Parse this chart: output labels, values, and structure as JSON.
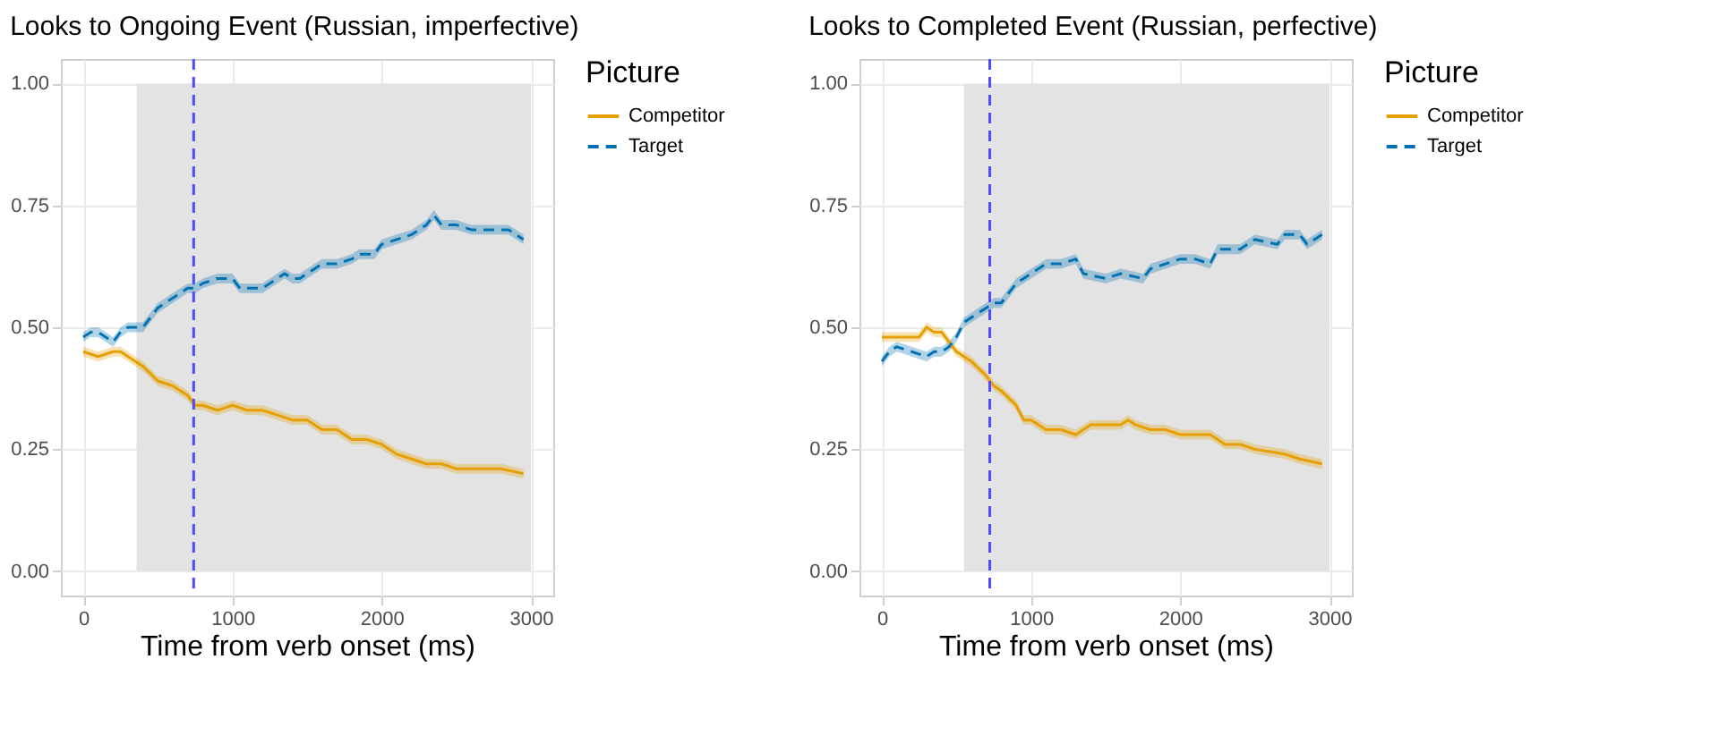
{
  "chart_data": [
    {
      "type": "line",
      "title": "Looks to Ongoing Event (Russian, imperfective)",
      "xlabel": "Time from verb onset (ms)",
      "legend_title": "Picture",
      "legend": "right",
      "grid": true,
      "xlim": [
        -150,
        3150
      ],
      "xticks": [
        0,
        1000,
        2000,
        3000
      ],
      "ylim": [
        -0.05,
        1.05
      ],
      "yticks": [
        {
          "value": 0,
          "label": "0.00"
        },
        {
          "value": 0.25,
          "label": "0.25"
        },
        {
          "value": 0.5,
          "label": "0.50"
        },
        {
          "value": 0.75,
          "label": "0.75"
        },
        {
          "value": 1,
          "label": "1.00"
        }
      ],
      "bands": [
        {
          "axis": "x",
          "from": 357,
          "to": 3000,
          "color": "#e3e3e3"
        }
      ],
      "ref_lines": [
        {
          "axis": "x",
          "value": 740,
          "color": "#4d4dff",
          "line_style": "dashed"
        }
      ],
      "series": [
        {
          "name": "Competitor",
          "color": "#e69f00",
          "line_style": "solid",
          "x": [
            0,
            100,
            200,
            250,
            300,
            350,
            400,
            500,
            600,
            700,
            750,
            800,
            900,
            1000,
            1100,
            1200,
            1300,
            1400,
            1450,
            1500,
            1600,
            1700,
            1800,
            1900,
            2000,
            2100,
            2200,
            2300,
            2400,
            2500,
            2600,
            2700,
            2800,
            2950
          ],
          "values": [
            0.45,
            0.44,
            0.45,
            0.45,
            0.44,
            0.43,
            0.42,
            0.39,
            0.38,
            0.36,
            0.34,
            0.34,
            0.33,
            0.34,
            0.33,
            0.33,
            0.32,
            0.31,
            0.31,
            0.31,
            0.29,
            0.29,
            0.27,
            0.27,
            0.26,
            0.24,
            0.23,
            0.22,
            0.22,
            0.21,
            0.21,
            0.21,
            0.21,
            0.2
          ],
          "lower": [
            0.44,
            0.43,
            0.44,
            0.44,
            0.43,
            0.42,
            0.41,
            0.38,
            0.37,
            0.35,
            0.33,
            0.33,
            0.32,
            0.33,
            0.32,
            0.32,
            0.31,
            0.3,
            0.3,
            0.3,
            0.28,
            0.28,
            0.26,
            0.26,
            0.25,
            0.23,
            0.22,
            0.21,
            0.21,
            0.2,
            0.2,
            0.2,
            0.2,
            0.19
          ],
          "upper": [
            0.46,
            0.45,
            0.46,
            0.46,
            0.45,
            0.44,
            0.43,
            0.4,
            0.39,
            0.37,
            0.35,
            0.35,
            0.34,
            0.35,
            0.34,
            0.34,
            0.33,
            0.32,
            0.32,
            0.32,
            0.3,
            0.3,
            0.28,
            0.28,
            0.27,
            0.25,
            0.24,
            0.23,
            0.23,
            0.22,
            0.22,
            0.22,
            0.22,
            0.21
          ]
        },
        {
          "name": "Target",
          "color": "#0072b2",
          "line_style": "dashed",
          "x": [
            0,
            50,
            100,
            150,
            200,
            250,
            300,
            350,
            400,
            450,
            500,
            600,
            700,
            750,
            800,
            900,
            1000,
            1050,
            1100,
            1150,
            1200,
            1300,
            1350,
            1400,
            1450,
            1500,
            1600,
            1700,
            1800,
            1850,
            1950,
            2000,
            2100,
            2200,
            2300,
            2350,
            2400,
            2500,
            2600,
            2700,
            2800,
            2850,
            2950
          ],
          "values": [
            0.48,
            0.49,
            0.49,
            0.48,
            0.47,
            0.49,
            0.5,
            0.5,
            0.5,
            0.52,
            0.54,
            0.56,
            0.58,
            0.58,
            0.59,
            0.6,
            0.6,
            0.58,
            0.58,
            0.58,
            0.58,
            0.6,
            0.61,
            0.6,
            0.6,
            0.61,
            0.63,
            0.63,
            0.64,
            0.65,
            0.65,
            0.67,
            0.68,
            0.69,
            0.71,
            0.73,
            0.71,
            0.71,
            0.7,
            0.7,
            0.7,
            0.7,
            0.68
          ],
          "lower": [
            0.47,
            0.48,
            0.48,
            0.47,
            0.46,
            0.48,
            0.49,
            0.49,
            0.49,
            0.51,
            0.53,
            0.55,
            0.57,
            0.57,
            0.58,
            0.59,
            0.59,
            0.57,
            0.57,
            0.57,
            0.57,
            0.59,
            0.6,
            0.59,
            0.59,
            0.6,
            0.62,
            0.62,
            0.63,
            0.64,
            0.64,
            0.66,
            0.67,
            0.68,
            0.7,
            0.72,
            0.7,
            0.7,
            0.69,
            0.69,
            0.69,
            0.69,
            0.67
          ],
          "upper": [
            0.49,
            0.5,
            0.5,
            0.49,
            0.48,
            0.5,
            0.51,
            0.51,
            0.51,
            0.53,
            0.55,
            0.57,
            0.59,
            0.59,
            0.6,
            0.61,
            0.61,
            0.59,
            0.59,
            0.59,
            0.59,
            0.61,
            0.62,
            0.61,
            0.61,
            0.62,
            0.64,
            0.64,
            0.65,
            0.66,
            0.66,
            0.68,
            0.69,
            0.7,
            0.72,
            0.74,
            0.72,
            0.72,
            0.71,
            0.71,
            0.71,
            0.71,
            0.69
          ]
        }
      ]
    },
    {
      "type": "line",
      "title": "Looks to Completed Event (Russian, perfective)",
      "xlabel": "Time from verb onset (ms)",
      "legend_title": "Picture",
      "legend": "right",
      "grid": true,
      "xlim": [
        -150,
        3150
      ],
      "xticks": [
        0,
        1000,
        2000,
        3000
      ],
      "ylim": [
        -0.05,
        1.05
      ],
      "yticks": [
        {
          "value": 0,
          "label": "0.00"
        },
        {
          "value": 0.25,
          "label": "0.25"
        },
        {
          "value": 0.5,
          "label": "0.50"
        },
        {
          "value": 0.75,
          "label": "0.75"
        },
        {
          "value": 1,
          "label": "1.00"
        }
      ],
      "bands": [
        {
          "axis": "x",
          "from": 550,
          "to": 3000,
          "color": "#e3e3e3"
        }
      ],
      "ref_lines": [
        {
          "axis": "x",
          "value": 723,
          "color": "#4d4dff",
          "line_style": "dashed"
        }
      ],
      "series": [
        {
          "name": "Competitor",
          "color": "#e69f00",
          "line_style": "solid",
          "x": [
            0,
            100,
            200,
            250,
            300,
            350,
            400,
            450,
            500,
            600,
            700,
            750,
            800,
            900,
            950,
            1000,
            1100,
            1200,
            1300,
            1400,
            1500,
            1600,
            1650,
            1700,
            1800,
            1900,
            2000,
            2200,
            2300,
            2400,
            2500,
            2700,
            2800,
            2950
          ],
          "values": [
            0.48,
            0.48,
            0.48,
            0.48,
            0.5,
            0.49,
            0.49,
            0.47,
            0.45,
            0.43,
            0.4,
            0.38,
            0.37,
            0.34,
            0.31,
            0.31,
            0.29,
            0.29,
            0.28,
            0.3,
            0.3,
            0.3,
            0.31,
            0.3,
            0.29,
            0.29,
            0.28,
            0.28,
            0.26,
            0.26,
            0.25,
            0.24,
            0.23,
            0.22
          ],
          "lower": [
            0.47,
            0.47,
            0.47,
            0.47,
            0.49,
            0.48,
            0.48,
            0.46,
            0.44,
            0.42,
            0.39,
            0.37,
            0.36,
            0.33,
            0.3,
            0.3,
            0.28,
            0.28,
            0.27,
            0.29,
            0.29,
            0.29,
            0.3,
            0.29,
            0.28,
            0.28,
            0.27,
            0.27,
            0.25,
            0.25,
            0.24,
            0.23,
            0.22,
            0.21
          ],
          "upper": [
            0.49,
            0.49,
            0.49,
            0.49,
            0.51,
            0.5,
            0.5,
            0.48,
            0.46,
            0.44,
            0.41,
            0.39,
            0.38,
            0.35,
            0.32,
            0.32,
            0.3,
            0.3,
            0.29,
            0.31,
            0.31,
            0.31,
            0.32,
            0.31,
            0.3,
            0.3,
            0.29,
            0.29,
            0.27,
            0.27,
            0.26,
            0.25,
            0.24,
            0.23
          ]
        },
        {
          "name": "Target",
          "color": "#0072b2",
          "line_style": "dashed",
          "x": [
            0,
            50,
            100,
            200,
            300,
            350,
            400,
            450,
            500,
            550,
            600,
            700,
            750,
            800,
            900,
            1000,
            1100,
            1200,
            1300,
            1350,
            1500,
            1600,
            1750,
            1800,
            1900,
            2000,
            2100,
            2200,
            2250,
            2400,
            2500,
            2650,
            2700,
            2800,
            2850,
            2950
          ],
          "values": [
            0.43,
            0.45,
            0.46,
            0.45,
            0.44,
            0.45,
            0.45,
            0.46,
            0.48,
            0.51,
            0.52,
            0.54,
            0.55,
            0.55,
            0.59,
            0.61,
            0.63,
            0.63,
            0.64,
            0.61,
            0.6,
            0.61,
            0.6,
            0.62,
            0.63,
            0.64,
            0.64,
            0.63,
            0.66,
            0.66,
            0.68,
            0.67,
            0.69,
            0.69,
            0.67,
            0.69
          ],
          "lower": [
            0.42,
            0.44,
            0.45,
            0.44,
            0.43,
            0.44,
            0.44,
            0.45,
            0.47,
            0.5,
            0.51,
            0.53,
            0.54,
            0.54,
            0.58,
            0.6,
            0.62,
            0.62,
            0.63,
            0.6,
            0.59,
            0.6,
            0.59,
            0.61,
            0.62,
            0.63,
            0.63,
            0.62,
            0.65,
            0.65,
            0.67,
            0.66,
            0.68,
            0.68,
            0.66,
            0.68
          ],
          "upper": [
            0.44,
            0.46,
            0.47,
            0.46,
            0.45,
            0.46,
            0.46,
            0.47,
            0.49,
            0.52,
            0.53,
            0.55,
            0.56,
            0.56,
            0.6,
            0.62,
            0.64,
            0.64,
            0.65,
            0.62,
            0.61,
            0.62,
            0.61,
            0.63,
            0.64,
            0.65,
            0.65,
            0.64,
            0.67,
            0.67,
            0.69,
            0.68,
            0.7,
            0.7,
            0.68,
            0.7
          ]
        }
      ]
    }
  ]
}
